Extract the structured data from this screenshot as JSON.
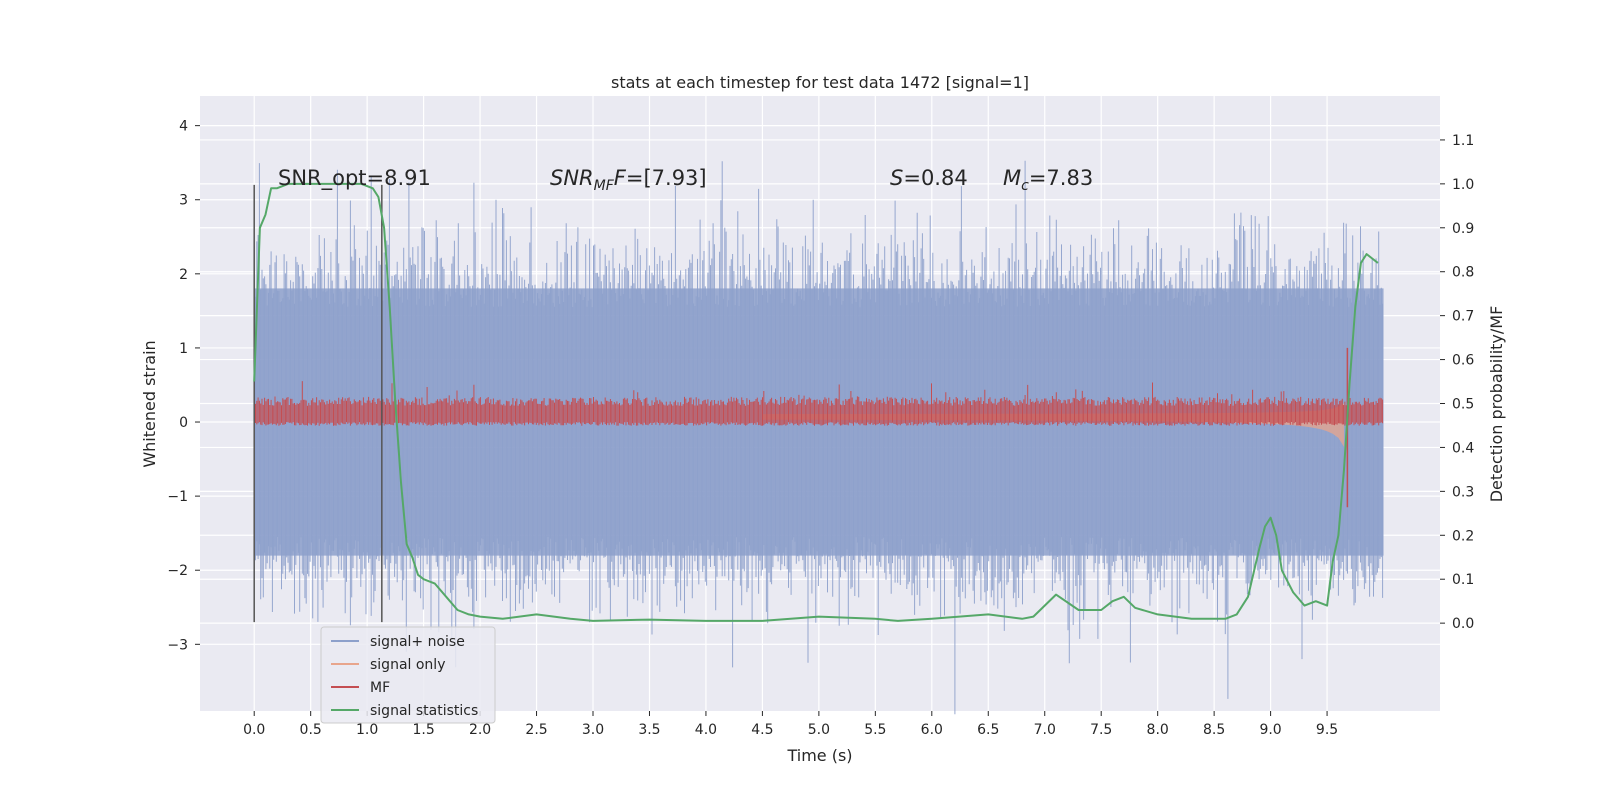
{
  "chart_data": {
    "type": "line",
    "title": "stats at each timestep for test data 1472 [signal=1]",
    "xlabel": "Time (s)",
    "ylabel": "Whitened strain",
    "y2label": "Detection probability/MF",
    "xlim": [
      -0.48,
      10.5
    ],
    "ylim": [
      -3.9,
      4.4
    ],
    "y2lim": [
      -0.2,
      1.2
    ],
    "x_ticks": [
      "0.0",
      "0.5",
      "1.0",
      "1.5",
      "2.0",
      "2.5",
      "3.0",
      "3.5",
      "4.0",
      "4.5",
      "5.0",
      "5.5",
      "6.0",
      "6.5",
      "7.0",
      "7.5",
      "8.0",
      "8.5",
      "9.0",
      "9.5"
    ],
    "y_ticks": [
      "−3",
      "−2",
      "−1",
      "0",
      "1",
      "2",
      "3",
      "4"
    ],
    "y2_ticks": [
      "0.0",
      "0.1",
      "0.2",
      "0.3",
      "0.4",
      "0.5",
      "0.6",
      "0.7",
      "0.8",
      "0.9",
      "1.0",
      "1.1"
    ],
    "grid": true,
    "legend_placement": "lower-left",
    "annotations": {
      "snr_opt": "SNR_opt=8.91",
      "snr_mf_italic": "SNR",
      "snr_mf_sub": "MF",
      "snr_mf_val": "=[7.93]",
      "s_italic": "S",
      "s_val": "=0.84",
      "mc_italic": "M",
      "mc_sub": "c",
      "mc_val": "=7.83"
    },
    "vlines": [
      0.0,
      1.13
    ],
    "series": [
      {
        "name": "signal+ noise",
        "color": "#8da0cb",
        "axis": "left",
        "noise_band": [
          -2.1,
          2.1
        ],
        "x_range": [
          0.0,
          10.0
        ]
      },
      {
        "name": "signal only",
        "color": "#e8a58c",
        "axis": "left",
        "chirp_end": 9.68
      },
      {
        "name": "MF",
        "color": "#c44e52",
        "axis": "left",
        "band": [
          -0.05,
          0.3
        ]
      },
      {
        "name": "signal statistics",
        "color": "#55a868",
        "axis": "right",
        "x": [
          0.0,
          0.05,
          0.1,
          0.15,
          0.2,
          0.3,
          0.5,
          0.8,
          0.95,
          1.05,
          1.1,
          1.15,
          1.2,
          1.25,
          1.3,
          1.35,
          1.4,
          1.45,
          1.5,
          1.6,
          1.7,
          1.8,
          1.9,
          2.0,
          2.2,
          2.5,
          2.8,
          3.0,
          3.5,
          4.0,
          4.5,
          5.0,
          5.5,
          5.7,
          6.0,
          6.5,
          6.8,
          6.9,
          7.0,
          7.1,
          7.3,
          7.5,
          7.6,
          7.7,
          7.8,
          8.0,
          8.3,
          8.6,
          8.7,
          8.8,
          8.9,
          8.95,
          9.0,
          9.05,
          9.1,
          9.2,
          9.3,
          9.4,
          9.5,
          9.55,
          9.6,
          9.65,
          9.7,
          9.75,
          9.8,
          9.85,
          9.9,
          9.95
        ],
        "y": [
          0.55,
          0.9,
          0.93,
          0.99,
          0.99,
          1.0,
          1.0,
          1.0,
          1.0,
          0.99,
          0.97,
          0.9,
          0.72,
          0.5,
          0.32,
          0.18,
          0.15,
          0.11,
          0.1,
          0.09,
          0.06,
          0.03,
          0.02,
          0.015,
          0.01,
          0.02,
          0.01,
          0.005,
          0.008,
          0.005,
          0.005,
          0.015,
          0.01,
          0.005,
          0.01,
          0.02,
          0.01,
          0.015,
          0.04,
          0.065,
          0.03,
          0.03,
          0.05,
          0.06,
          0.035,
          0.02,
          0.01,
          0.01,
          0.02,
          0.06,
          0.17,
          0.22,
          0.24,
          0.2,
          0.12,
          0.07,
          0.04,
          0.05,
          0.04,
          0.14,
          0.2,
          0.35,
          0.55,
          0.72,
          0.82,
          0.84,
          0.83,
          0.82
        ]
      }
    ]
  }
}
